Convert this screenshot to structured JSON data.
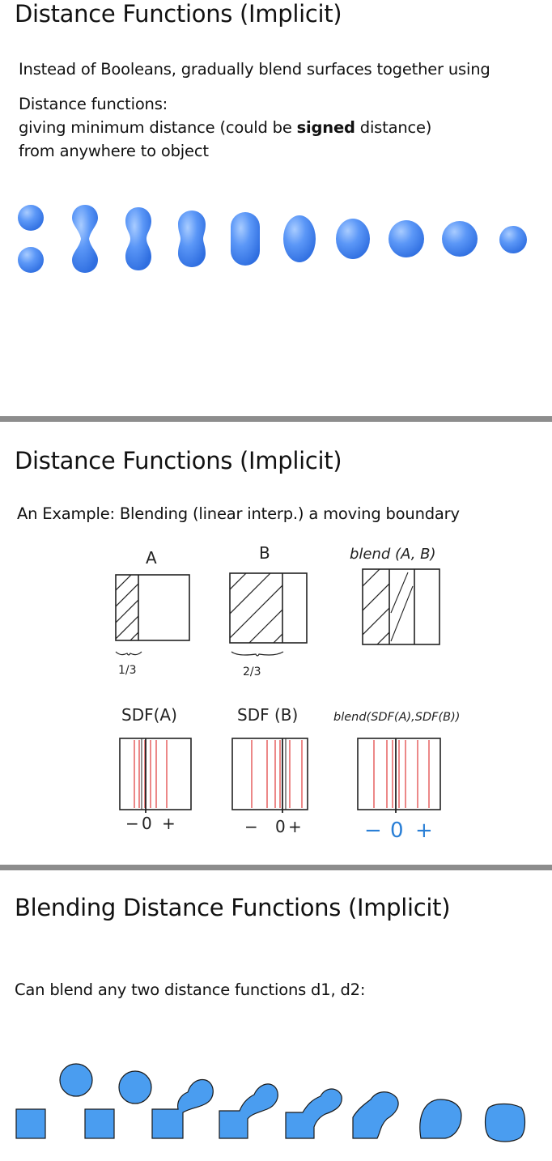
{
  "slides": [
    {
      "title": "Distance Functions (Implicit)",
      "line1": "Instead of Booleans, gradually blend surfaces together using",
      "line2": "Distance functions:",
      "line3_pre": "giving minimum distance (could be ",
      "line3_bold": "signed",
      "line3_post": " distance)",
      "line4": "from anywhere to object"
    },
    {
      "title": "Distance Functions (Implicit)",
      "subtitle": "An Example: Blending (linear interp.) a moving boundary",
      "diagram_labels": {
        "a": "A",
        "b": "B",
        "blend": "blend (A, B)",
        "one_third": "1/3",
        "two_thirds": "2/3",
        "sdf_a": "SDF(A)",
        "sdf_b": "SDF (B)",
        "blend_sdf": "blend(SDF(A),SDF(B))",
        "sign_minus": "−",
        "sign_zero": "0",
        "sign_plus": "+"
      }
    },
    {
      "title": "Blending Distance Functions (Implicit)",
      "subtitle": "Can blend any two distance functions d1, d2:"
    }
  ],
  "colors": {
    "blob_blue": "#4f8ff5",
    "shape_blue": "#4a9df0",
    "sdf_red": "#e03a3a",
    "annotation_blue": "#2a7fd6",
    "divider_gray": "#8d8d8d"
  }
}
